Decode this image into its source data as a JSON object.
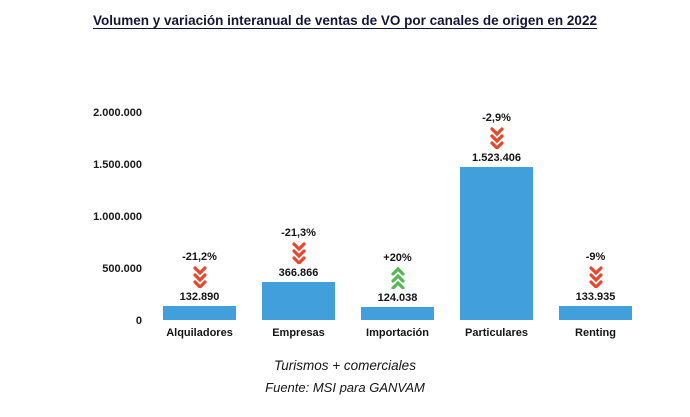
{
  "title": "Volumen y variación interanual de ventas de VO por canales de origen en 2022",
  "footer": {
    "line1": "Turismos + comerciales",
    "line2": "Fuente: MSI para GANVAM"
  },
  "colors": {
    "bar": "#41a0dc",
    "arrow_down": "#e8472b",
    "arrow_up": "#53b953",
    "text": "#141414"
  },
  "chart_data": {
    "type": "bar",
    "title": "Volumen y variación interanual de ventas de VO por canales de origen en 2022",
    "categories": [
      "Alquiladores",
      "Empresas",
      "Importación",
      "Particulares",
      "Renting"
    ],
    "values": [
      132890,
      366866,
      124038,
      1523406,
      133935
    ],
    "value_labels": [
      "132.890",
      "366.866",
      "124.038",
      "1.523.406",
      "133.935"
    ],
    "variations": [
      "-21,2%",
      "-21,3%",
      "+20%",
      "-2,9%",
      "-9%"
    ],
    "variation_directions": [
      "down",
      "down",
      "up",
      "down",
      "down"
    ],
    "xlabel": "",
    "ylabel": "",
    "ylim": [
      0,
      2000000
    ],
    "yticks": [
      0,
      500000,
      1000000,
      1500000,
      2000000
    ],
    "ytick_labels": [
      "0",
      "500.000",
      "1.000.000",
      "1.500.000",
      "2.000.000"
    ],
    "grid": false,
    "legend": false
  }
}
